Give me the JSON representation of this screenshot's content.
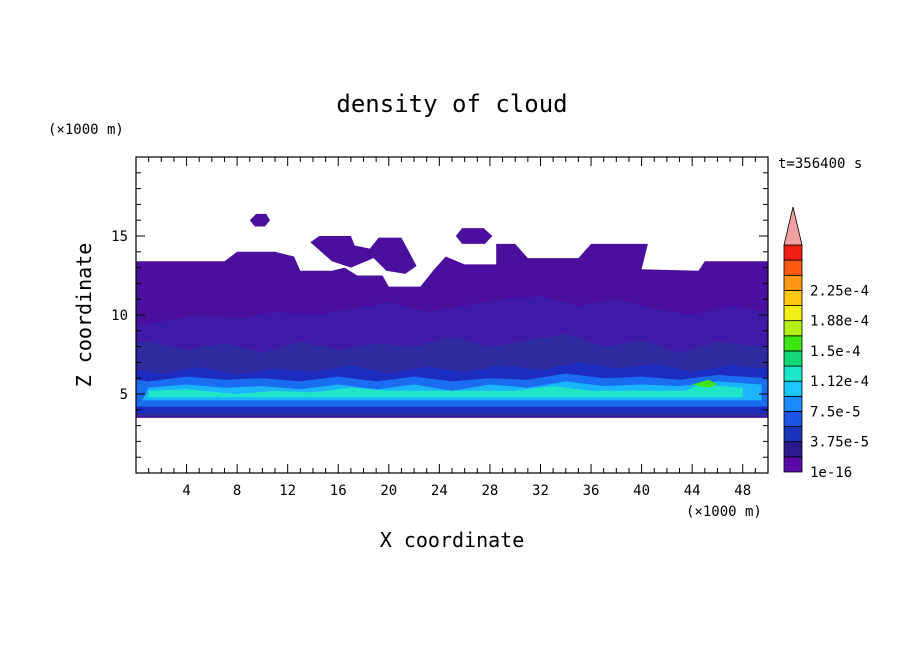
{
  "chart_data": {
    "type": "heatmap",
    "title": "density of cloud",
    "xlabel": "X coordinate",
    "ylabel": "Z coordinate",
    "x_unit": "(×1000 m)",
    "y_unit": "(×1000 m)",
    "time_label": "t=356400 s",
    "xlim": [
      0,
      50
    ],
    "ylim": [
      0,
      20
    ],
    "x_ticks": [
      "4",
      "8",
      "12",
      "16",
      "20",
      "24",
      "28",
      "32",
      "36",
      "40",
      "44",
      "48"
    ],
    "y_ticks": [
      "5",
      "10",
      "15"
    ],
    "colorbar": {
      "levels": [
        "1e-16",
        "3.75e-5",
        "7.5e-5",
        "1.12e-4",
        "1.5e-4",
        "1.88e-4",
        "2.25e-4"
      ],
      "colors": [
        "#5a0aa8",
        "#2b1a8e",
        "#1a34b8",
        "#1a55e6",
        "#1a8cff",
        "#1ac8ff",
        "#1ae6c8",
        "#14d878",
        "#3ce614",
        "#b4f014",
        "#f0f014",
        "#ffc814",
        "#ff9614",
        "#ff5a14",
        "#f01e14",
        "#f0a0a0"
      ]
    },
    "layers": [
      {
        "name": "cloud-base-layer",
        "color": "#4b0f9e",
        "points": [
          [
            0,
            3.5
          ],
          [
            50,
            3.5
          ],
          [
            50,
            13.4
          ],
          [
            45,
            13.4
          ],
          [
            44.5,
            12.8
          ],
          [
            40,
            12.9
          ],
          [
            40.5,
            14.5
          ],
          [
            36,
            14.5
          ],
          [
            35,
            13.6
          ],
          [
            31,
            13.6
          ],
          [
            30,
            14.5
          ],
          [
            28.5,
            14.5
          ],
          [
            28.5,
            13.2
          ],
          [
            26,
            13.2
          ],
          [
            24.5,
            13.7
          ],
          [
            23.5,
            12.8
          ],
          [
            22.5,
            11.8
          ],
          [
            20,
            11.8
          ],
          [
            19.5,
            12.5
          ],
          [
            17.5,
            12.5
          ],
          [
            16.5,
            13.0
          ],
          [
            15.5,
            12.8
          ],
          [
            13,
            12.8
          ],
          [
            12.5,
            13.7
          ],
          [
            11,
            14.0
          ],
          [
            8,
            14.0
          ],
          [
            7,
            13.4
          ],
          [
            0,
            13.4
          ]
        ]
      },
      {
        "name": "cloud-top-patch-a",
        "color": "#4b0f9e",
        "points": [
          [
            13.8,
            14.6
          ],
          [
            14.5,
            15.0
          ],
          [
            17,
            15.0
          ],
          [
            17.3,
            14.4
          ],
          [
            18.5,
            14.2
          ],
          [
            19.2,
            14.9
          ],
          [
            21,
            14.9
          ],
          [
            21.6,
            14.0
          ],
          [
            22.2,
            13.1
          ],
          [
            21.3,
            12.6
          ],
          [
            19.8,
            12.8
          ],
          [
            18.8,
            13.6
          ],
          [
            17.0,
            13.0
          ],
          [
            15.5,
            13.4
          ]
        ]
      },
      {
        "name": "cloud-top-patch-b",
        "color": "#4b0f9e",
        "points": [
          [
            25.3,
            15.0
          ],
          [
            25.8,
            15.5
          ],
          [
            27.5,
            15.5
          ],
          [
            28.2,
            15.0
          ],
          [
            27.6,
            14.5
          ],
          [
            25.8,
            14.5
          ]
        ]
      },
      {
        "name": "cloud-top-patch-c",
        "color": "#4b0f9e",
        "points": [
          [
            9,
            16.0
          ],
          [
            9.5,
            16.4
          ],
          [
            10.3,
            16.4
          ],
          [
            10.6,
            16.0
          ],
          [
            10.2,
            15.6
          ],
          [
            9.4,
            15.6
          ]
        ]
      },
      {
        "name": "mid-layer",
        "color": "#3f1aa6",
        "points": [
          [
            0,
            3.5
          ],
          [
            50,
            3.5
          ],
          [
            50,
            10.2
          ],
          [
            47,
            10.6
          ],
          [
            44,
            10.0
          ],
          [
            41,
            10.4
          ],
          [
            38,
            11.0
          ],
          [
            35,
            10.6
          ],
          [
            32,
            11.2
          ],
          [
            29,
            11.0
          ],
          [
            26,
            10.6
          ],
          [
            23,
            10.2
          ],
          [
            20,
            10.8
          ],
          [
            17,
            10.4
          ],
          [
            14,
            10.0
          ],
          [
            11,
            10.2
          ],
          [
            8,
            9.8
          ],
          [
            5,
            10.0
          ],
          [
            2,
            9.6
          ],
          [
            0,
            9.4
          ]
        ]
      },
      {
        "name": "lower-mid-layer",
        "color": "#2e2aa0",
        "points": [
          [
            0,
            3.6
          ],
          [
            50,
            3.6
          ],
          [
            50,
            8.0
          ],
          [
            46,
            8.3
          ],
          [
            43,
            7.6
          ],
          [
            40,
            8.4
          ],
          [
            37,
            8.0
          ],
          [
            34,
            8.8
          ],
          [
            31,
            8.4
          ],
          [
            28,
            8.0
          ],
          [
            25,
            8.6
          ],
          [
            22,
            8.0
          ],
          [
            19,
            8.2
          ],
          [
            16,
            7.8
          ],
          [
            13,
            8.3
          ],
          [
            10,
            7.6
          ],
          [
            7,
            8.2
          ],
          [
            4,
            7.8
          ],
          [
            1,
            8.3
          ],
          [
            0,
            8.2
          ]
        ]
      },
      {
        "name": "dense-layer",
        "color": "#1c2cc0",
        "points": [
          [
            0,
            3.8
          ],
          [
            50,
            3.8
          ],
          [
            50,
            6.6
          ],
          [
            47,
            6.8
          ],
          [
            44,
            6.4
          ],
          [
            41,
            6.9
          ],
          [
            38,
            6.6
          ],
          [
            35,
            7.0
          ],
          [
            32,
            6.5
          ],
          [
            29,
            6.8
          ],
          [
            26,
            6.4
          ],
          [
            23,
            6.7
          ],
          [
            20,
            6.3
          ],
          [
            17,
            6.8
          ],
          [
            14,
            6.4
          ],
          [
            11,
            6.6
          ],
          [
            8,
            6.2
          ],
          [
            5,
            6.7
          ],
          [
            2,
            6.3
          ],
          [
            0,
            6.5
          ]
        ]
      },
      {
        "name": "blue-core",
        "color": "#1a6cf0",
        "points": [
          [
            0,
            4.2
          ],
          [
            50,
            4.2
          ],
          [
            50,
            6.0
          ],
          [
            46,
            6.2
          ],
          [
            43,
            5.9
          ],
          [
            40,
            6.1
          ],
          [
            37,
            6.0
          ],
          [
            34,
            6.3
          ],
          [
            31,
            5.9
          ],
          [
            28,
            6.0
          ],
          [
            25,
            5.8
          ],
          [
            22,
            6.1
          ],
          [
            19,
            5.8
          ],
          [
            16,
            6.1
          ],
          [
            13,
            5.8
          ],
          [
            10,
            6.0
          ],
          [
            7,
            5.9
          ],
          [
            4,
            6.1
          ],
          [
            1,
            5.8
          ],
          [
            0,
            5.9
          ]
        ]
      },
      {
        "name": "cyan-core",
        "color": "#1ab4ff",
        "points": [
          [
            0.5,
            4.6
          ],
          [
            49.5,
            4.6
          ],
          [
            49.5,
            5.6
          ],
          [
            46,
            5.8
          ],
          [
            43,
            5.5
          ],
          [
            40,
            5.6
          ],
          [
            37,
            5.5
          ],
          [
            34,
            5.8
          ],
          [
            31,
            5.4
          ],
          [
            28,
            5.6
          ],
          [
            25,
            5.2
          ],
          [
            22,
            5.6
          ],
          [
            19,
            5.3
          ],
          [
            16,
            5.6
          ],
          [
            13,
            5.3
          ],
          [
            10,
            5.5
          ],
          [
            7,
            5.4
          ],
          [
            4,
            5.6
          ],
          [
            1,
            5.4
          ]
        ]
      },
      {
        "name": "teal-core",
        "color": "#20e6c8",
        "points": [
          [
            1,
            4.8
          ],
          [
            48,
            4.8
          ],
          [
            48,
            5.4
          ],
          [
            44.5,
            5.6
          ],
          [
            43.5,
            5.2
          ],
          [
            36,
            5.2
          ],
          [
            33,
            5.5
          ],
          [
            30,
            5.2
          ],
          [
            20,
            5.2
          ],
          [
            17,
            5.4
          ],
          [
            14,
            5.1
          ],
          [
            11,
            5.2
          ],
          [
            8,
            5.0
          ],
          [
            4,
            5.3
          ],
          [
            1,
            5.2
          ]
        ]
      },
      {
        "name": "green-spot",
        "color": "#3ce614",
        "points": [
          [
            44,
            5.6
          ],
          [
            45.3,
            5.9
          ],
          [
            46,
            5.6
          ],
          [
            45.2,
            5.4
          ]
        ]
      }
    ]
  }
}
